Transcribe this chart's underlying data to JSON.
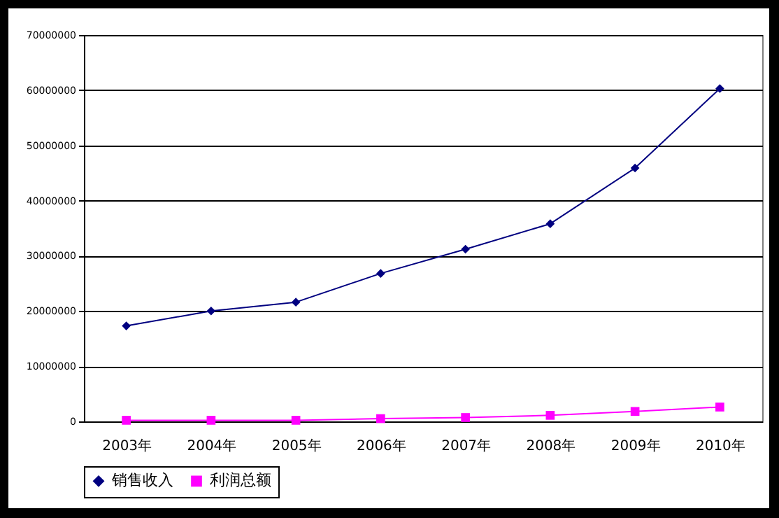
{
  "chart_data": {
    "type": "line",
    "categories": [
      "2003年",
      "2004年",
      "2005年",
      "2006年",
      "2007年",
      "2008年",
      "2009年",
      "2010年"
    ],
    "series": [
      {
        "name": "销售收入",
        "color": "#000080",
        "marker": "diamond",
        "values": [
          17300000,
          20000000,
          21600000,
          26800000,
          31200000,
          35800000,
          45900000,
          60300000
        ]
      },
      {
        "name": "利润总额",
        "color": "#ff00ff",
        "marker": "square",
        "values": [
          200000,
          200000,
          200000,
          500000,
          700000,
          1100000,
          1800000,
          2600000
        ]
      }
    ],
    "ylim": [
      0,
      70000000
    ],
    "yticks": [
      0,
      10000000,
      20000000,
      30000000,
      40000000,
      50000000,
      60000000,
      70000000
    ],
    "grid": "y",
    "legend": "bottom",
    "line_style": "solid"
  }
}
